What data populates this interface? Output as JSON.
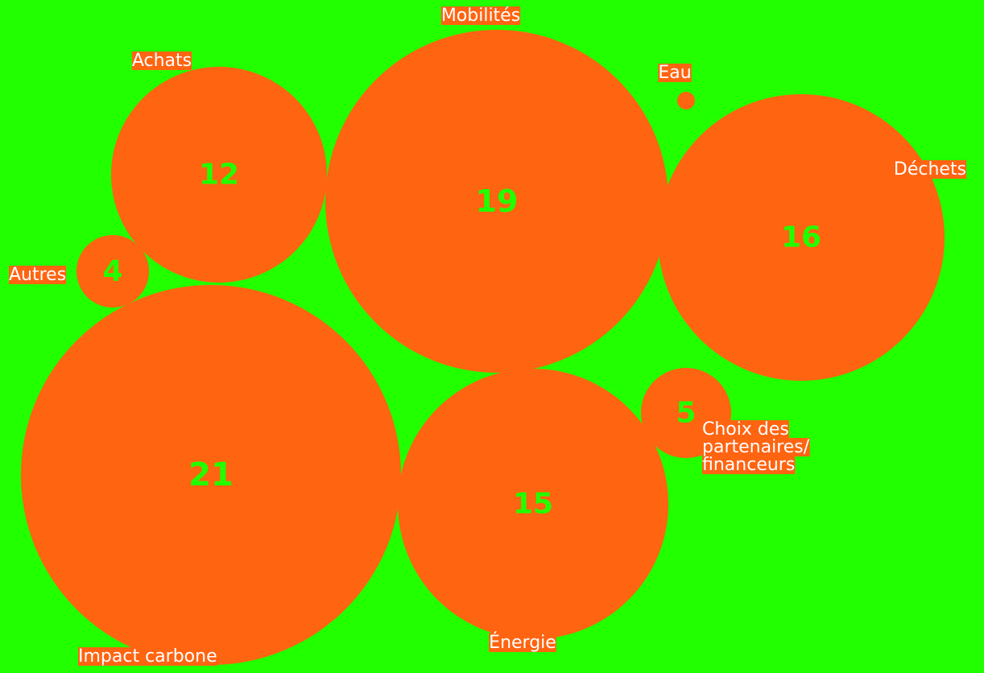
{
  "chart_data": {
    "type": "bubble",
    "title": "",
    "colors": {
      "background": "#22ff00",
      "bubble": "#ff6411",
      "value_text": "#22ff00",
      "label_text": "#ffffff"
    },
    "items": [
      {
        "label": "Impact carbone",
        "value": 21
      },
      {
        "label": "Mobilités",
        "value": 19
      },
      {
        "label": "Déchets",
        "value": 16
      },
      {
        "label": "Énergie",
        "value": 15
      },
      {
        "label": "Achats",
        "value": 12
      },
      {
        "label": "Choix des partenaires/ financeurs",
        "label_lines": [
          "Choix des",
          "partenaires/",
          "financeurs"
        ],
        "value": 5
      },
      {
        "label": "Autres",
        "value": 4
      },
      {
        "label": "Eau",
        "value": null
      }
    ]
  }
}
